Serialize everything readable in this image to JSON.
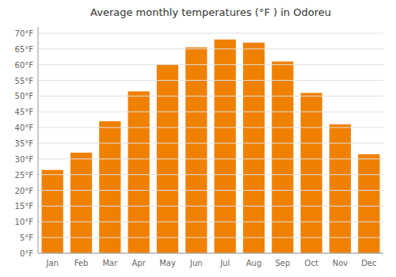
{
  "chart_data": {
    "type": "bar",
    "title": "Average monthly temperatures (°F ) in Odoreu",
    "categories": [
      "Jan",
      "Feb",
      "Mar",
      "Apr",
      "May",
      "Jun",
      "Jul",
      "Aug",
      "Sep",
      "Oct",
      "Nov",
      "Dec"
    ],
    "values": [
      26.5,
      32,
      42,
      51.5,
      60,
      65.5,
      68,
      67,
      61,
      51,
      41,
      31.5
    ],
    "color": "#F08000",
    "ylim": [
      0,
      72
    ],
    "yticks": [
      {
        "value": 0,
        "label": "0°F"
      },
      {
        "value": 5,
        "label": "5°F"
      },
      {
        "value": 10,
        "label": "10°F"
      },
      {
        "value": 15,
        "label": "15°F"
      },
      {
        "value": 20,
        "label": "20°F"
      },
      {
        "value": 25,
        "label": "25°F"
      },
      {
        "value": 30,
        "label": "30°F"
      },
      {
        "value": 35,
        "label": "35°F"
      },
      {
        "value": 40,
        "label": "40°F"
      },
      {
        "value": 45,
        "label": "45°F"
      },
      {
        "value": 50,
        "label": "50°F"
      },
      {
        "value": 55,
        "label": "55°F"
      },
      {
        "value": 60,
        "label": "60°F"
      },
      {
        "value": 65,
        "label": "65°F"
      },
      {
        "value": 70,
        "label": "70°F"
      }
    ],
    "grid": true
  }
}
